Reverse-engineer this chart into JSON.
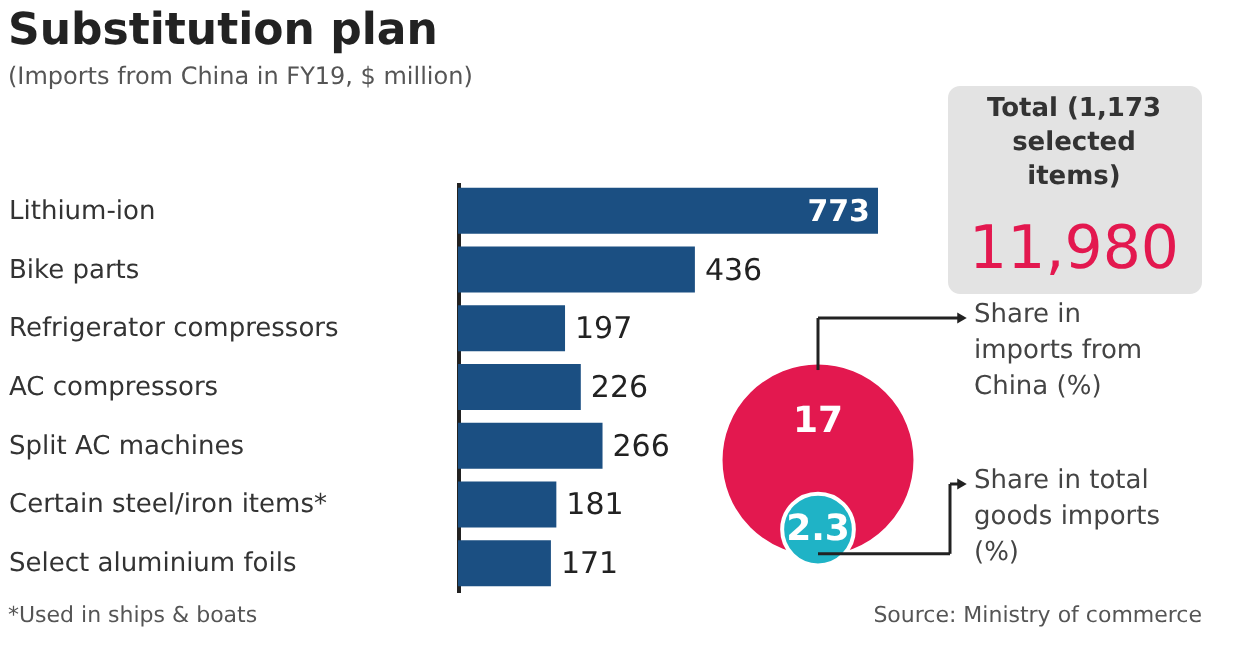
{
  "chart_data": [
    {
      "type": "bar",
      "orientation": "horizontal",
      "title": "Substitution plan",
      "subtitle": "(Imports from China in FY19, $ million)",
      "categories": [
        "Lithium-ion",
        "Bike parts",
        "Refrigerator compressors",
        "AC compressors",
        "Split AC machines",
        "Certain steel/iron items*",
        "Select aluminium foils"
      ],
      "values": [
        773,
        436,
        197,
        226,
        266,
        181,
        171
      ],
      "color": "#1b4f82",
      "data_labels": true,
      "annotations": [
        "*Used in ships & boats"
      ]
    },
    {
      "type": "other",
      "title": "Total (1,173 selected items)",
      "subtitle": "11,980",
      "categories": [
        "Share in imports from China (%)",
        "Share in total goods imports (%)"
      ],
      "values": [
        17,
        2.3
      ],
      "colors": [
        "#e3184f",
        "#1fb3c6"
      ],
      "data_labels": true,
      "annotations": [
        "Source: Ministry of commerce"
      ]
    }
  ]
}
